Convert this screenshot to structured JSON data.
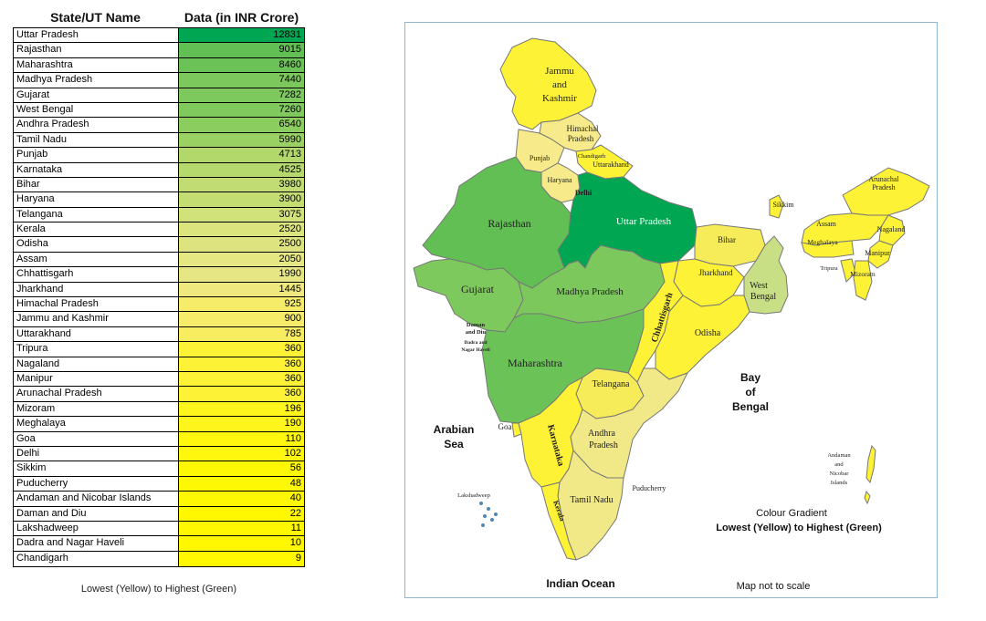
{
  "table": {
    "header_name": "State/UT Name",
    "header_value": "Data (in INR Crore)",
    "footer": "Lowest (Yellow) to Highest (Green)",
    "rows": [
      {
        "name": "Uttar Pradesh",
        "value": "12831",
        "color": "#00a651"
      },
      {
        "name": "Rajasthan",
        "value": "9015",
        "color": "#62bf54"
      },
      {
        "name": "Maharashtra",
        "value": "8460",
        "color": "#6bc358"
      },
      {
        "name": "Madhya Pradesh",
        "value": "7440",
        "color": "#7cc85d"
      },
      {
        "name": "Gujarat",
        "value": "7282",
        "color": "#7ec95d"
      },
      {
        "name": "West Bengal",
        "value": "7260",
        "color": "#7fc95d"
      },
      {
        "name": "Andhra Pradesh",
        "value": "6540",
        "color": "#8ccd60"
      },
      {
        "name": "Tamil Nadu",
        "value": "5990",
        "color": "#99d163"
      },
      {
        "name": "Punjab",
        "value": "4713",
        "color": "#b2d86c"
      },
      {
        "name": "Karnataka",
        "value": "4525",
        "color": "#b6d96d"
      },
      {
        "name": "Bihar",
        "value": "3980",
        "color": "#c1dc72"
      },
      {
        "name": "Haryana",
        "value": "3900",
        "color": "#c3dd73"
      },
      {
        "name": "Telangana",
        "value": "3075",
        "color": "#d2e27a"
      },
      {
        "name": "Kerala",
        "value": "2520",
        "color": "#dce47e"
      },
      {
        "name": "Odisha",
        "value": "2500",
        "color": "#dde47f"
      },
      {
        "name": "Assam",
        "value": "2050",
        "color": "#e5e782"
      },
      {
        "name": "Chhattisgarh",
        "value": "1990",
        "color": "#e6e784"
      },
      {
        "name": "Jharkhand",
        "value": "1445",
        "color": "#efe87e"
      },
      {
        "name": "Himachal Pradesh",
        "value": "925",
        "color": "#f6ec6a"
      },
      {
        "name": "Jammu and Kashmir",
        "value": "900",
        "color": "#f6ec69"
      },
      {
        "name": "Uttarakhand",
        "value": "785",
        "color": "#f8ed60"
      },
      {
        "name": "Tripura",
        "value": "360",
        "color": "#fdf235"
      },
      {
        "name": "Nagaland",
        "value": "360",
        "color": "#fdf235"
      },
      {
        "name": "Manipur",
        "value": "360",
        "color": "#fdf235"
      },
      {
        "name": "Arunachal Pradesh",
        "value": "360",
        "color": "#fdf235"
      },
      {
        "name": "Mizoram",
        "value": "196",
        "color": "#fef51d"
      },
      {
        "name": "Meghalaya",
        "value": "190",
        "color": "#fef51c"
      },
      {
        "name": "Goa",
        "value": "110",
        "color": "#fff70e"
      },
      {
        "name": "Delhi",
        "value": "102",
        "color": "#fff70d"
      },
      {
        "name": "Sikkim",
        "value": "56",
        "color": "#fff805"
      },
      {
        "name": "Puducherry",
        "value": "48",
        "color": "#fff804"
      },
      {
        "name": "Andaman and Nicobar Islands",
        "value": "40",
        "color": "#fff803"
      },
      {
        "name": "Daman and Diu",
        "value": "22",
        "color": "#fff801"
      },
      {
        "name": "Lakshadweep",
        "value": "11",
        "color": "#fff800"
      },
      {
        "name": "Dadra and Nagar Haveli",
        "value": "10",
        "color": "#fff800"
      },
      {
        "name": "Chandigarh",
        "value": "9",
        "color": "#fff800"
      }
    ]
  },
  "map": {
    "labels": {
      "jk1": "Jammu",
      "jk2": "and",
      "jk3": "Kashmir",
      "hp1": "Himachal",
      "hp2": "Pradesh",
      "punjab": "Punjab",
      "chandigarh": "Chandigarh",
      "uttarakhand": "Uttarakhand",
      "haryana": "Haryana",
      "delhi": "Delhi",
      "sikkim": "Sikkim",
      "ap1": "Arunachal",
      "ap2": "Pradesh",
      "assam": "Assam",
      "nagaland": "Nagaland",
      "meghalaya": "Meghalaya",
      "manipur": "Manipur",
      "tripura": "Tripura",
      "mizoram": "Mizoram",
      "rajasthan": "Rajasthan",
      "up": "Uttar Pradesh",
      "bihar": "Bihar",
      "jharkhand": "Jharkhand",
      "wb1": "West",
      "wb2": "Bengal",
      "gujarat": "Gujarat",
      "mp": "Madhya Pradesh",
      "chhattisgarh": "Chhattisgarh",
      "odisha": "Odisha",
      "dd1": "Daman",
      "dd2": "and Diu",
      "dnh1": "Dadra and",
      "dnh2": "Nagar Haveli",
      "maharashtra": "Maharashtra",
      "telangana": "Telangana",
      "goa": "Goa",
      "karnataka": "Karnataka",
      "andhra1": "Andhra",
      "andhra2": "Pradesh",
      "tamilnadu": "Tamil Nadu",
      "kerala": "Kerala",
      "puducherry": "Puducherry",
      "lakshadweep": "Lakshadweep",
      "an1": "Andaman",
      "an2": "and",
      "an3": "Nicobar",
      "an4": "Islands",
      "arabian1": "Arabian",
      "arabian2": "Sea",
      "bay1": "Bay",
      "bay2": "of",
      "bay3": "Bengal",
      "indian_ocean": "Indian Ocean",
      "gradient_title": "Colour Gradient",
      "gradient_range": "Lowest (Yellow) to Highest (Green)",
      "scale_note": "Map not to scale"
    },
    "colors": {
      "up": "#00a651",
      "rajasthan": "#62bf54",
      "maharashtra": "#6bc358",
      "mp": "#7cc85d",
      "gujarat": "#7ec95d",
      "wb": "#c9df86",
      "andhra": "#f1e888",
      "tamilnadu": "#f1e888",
      "punjab": "#f6ea8a",
      "karnataka": "#fdf235",
      "bihar": "#f6ec5a",
      "haryana": "#f6ea8a",
      "telangana": "#f6ec5a",
      "kerala": "#fdf235",
      "odisha": "#fdf235",
      "assam": "#fdf235",
      "chhattisgarh": "#fdf235",
      "jharkhand": "#fdf235",
      "hp": "#f6ea8a",
      "jk": "#fdf235",
      "uttarakhand": "#fdf235",
      "ne": "#fdf235",
      "islands": "#fdf235",
      "border": "#777777",
      "frame": "#8fb4d4"
    }
  }
}
